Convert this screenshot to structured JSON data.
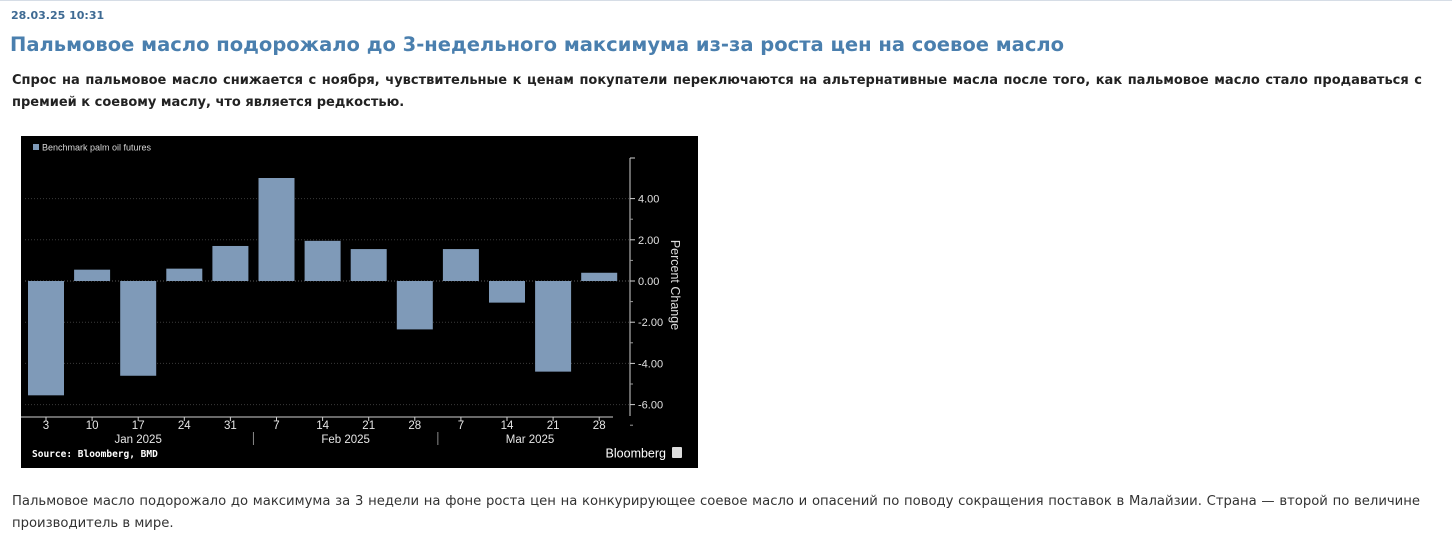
{
  "article": {
    "date": "28.03.25 10:31",
    "title": "Пальмовое масло подорожало до 3-недельного максимума из-за роста цен на соевое масло",
    "lead": "Спрос на пальмовое масло снижается с ноября, чувствительные к ценам покупатели переключаются на альтернативные масла после того, как пальмовое масло стало продаваться с премией к соевому маслу, что является редкостью.",
    "body": "Пальмовое масло подорожало до максимума за 3 недели на фоне роста цен на конкурирующее соевое масло и опасений по поводу сокращения поставок в Малайзии. Страна — второй по величине производитель в мире."
  },
  "chart_data": {
    "type": "bar",
    "legend": "Benchmark palm oil futures",
    "legend_position": "top-left",
    "ylabel": "Percent Change",
    "y_axis_side": "right",
    "ylim": [
      -6.5,
      6
    ],
    "yticks": [
      4.0,
      2.0,
      0.0,
      -2.0,
      -4.0,
      -6.0
    ],
    "ytick_labels": [
      "4.00",
      "2.00",
      "0.00",
      "-2.00",
      "-4.00",
      "-6.00"
    ],
    "categories": [
      "3",
      "10",
      "17",
      "24",
      "31",
      "7",
      "14",
      "21",
      "28",
      "7",
      "14",
      "21",
      "28"
    ],
    "months": [
      {
        "label": "Jan 2025",
        "start": 0,
        "end": 4
      },
      {
        "label": "Feb 2025",
        "start": 5,
        "end": 8
      },
      {
        "label": "Mar 2025",
        "start": 9,
        "end": 12
      }
    ],
    "values": [
      -5.55,
      0.55,
      -4.6,
      0.6,
      1.7,
      5.0,
      1.95,
      1.55,
      -2.35,
      1.55,
      -1.05,
      -4.4,
      0.4
    ],
    "bar_color": "#7f9ab8",
    "source": "Source: Bloomberg, BMD",
    "brand": "Bloomberg"
  }
}
